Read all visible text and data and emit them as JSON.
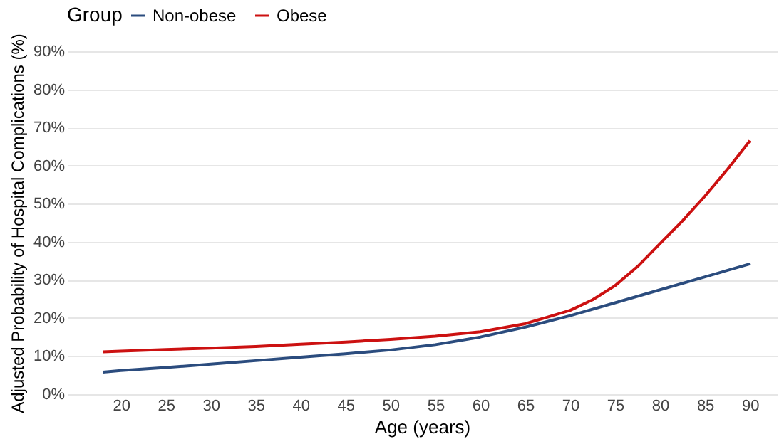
{
  "chart_data": {
    "type": "line",
    "xlabel": "Age (years)",
    "ylabel": "Adjusted Probability of Hospital Complications (%)",
    "legend_title": "Group",
    "legend": "top",
    "grid": "y",
    "line_style": "solid",
    "marker": "none",
    "xlim": [
      14,
      93
    ],
    "xticks": [
      20,
      25,
      30,
      35,
      40,
      45,
      50,
      55,
      60,
      65,
      70,
      75,
      80,
      85,
      90
    ],
    "ylim": [
      0,
      90
    ],
    "yticks": [
      {
        "value": 0,
        "label": "0%"
      },
      {
        "value": 10,
        "label": "10%"
      },
      {
        "value": 20,
        "label": "20%"
      },
      {
        "value": 30,
        "label": "30%"
      },
      {
        "value": 40,
        "label": "40%"
      },
      {
        "value": 50,
        "label": "50%"
      },
      {
        "value": 60,
        "label": "60%"
      },
      {
        "value": 70,
        "label": "70%"
      },
      {
        "value": 80,
        "label": "80%"
      },
      {
        "value": 90,
        "label": "90%"
      }
    ],
    "series": [
      {
        "name": "Non-obese",
        "color": "#2b4c7e",
        "x": [
          18,
          20,
          25,
          30,
          35,
          40,
          45,
          50,
          55,
          60,
          65,
          70,
          75,
          80,
          85,
          90
        ],
        "values": [
          5.8,
          6.2,
          7.0,
          7.9,
          8.8,
          9.7,
          10.6,
          11.6,
          13.0,
          15.0,
          17.6,
          20.6,
          24.0,
          27.4,
          30.8,
          34.2
        ]
      },
      {
        "name": "Obese",
        "color": "#cc1111",
        "x": [
          18,
          20,
          25,
          30,
          35,
          40,
          45,
          50,
          55,
          60,
          65,
          70,
          72.5,
          75,
          77.5,
          80,
          82.5,
          85,
          87.5,
          90
        ],
        "values": [
          11.1,
          11.3,
          11.7,
          12.1,
          12.5,
          13.1,
          13.7,
          14.4,
          15.2,
          16.4,
          18.5,
          22.0,
          24.8,
          28.5,
          33.5,
          39.5,
          45.5,
          52.0,
          59.0,
          66.5
        ]
      }
    ]
  }
}
